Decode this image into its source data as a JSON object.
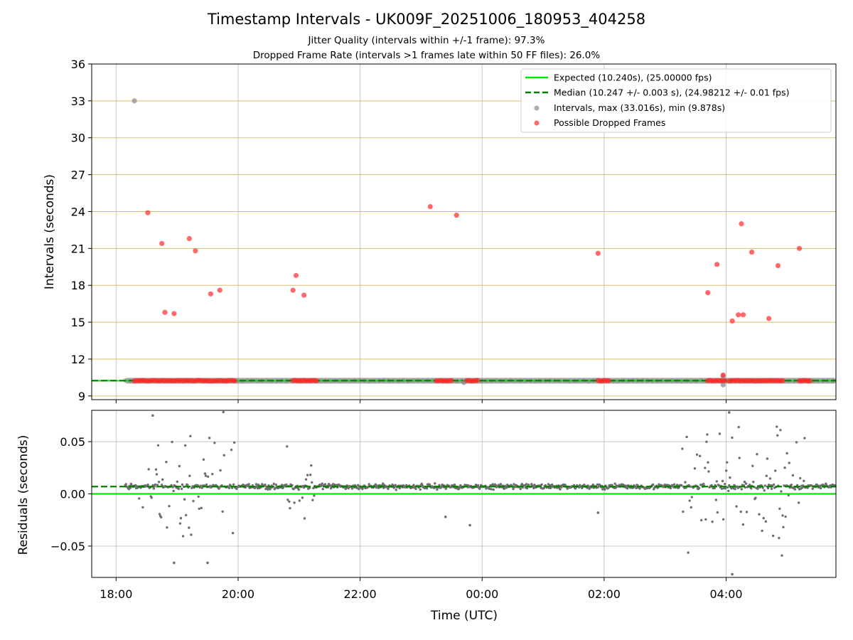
{
  "title": "Timestamp Intervals - UK009F_20251006_180953_404258",
  "subtitle_jitter": "Jitter Quality (intervals within +/-1 frame): 97.3%",
  "subtitle_dropped": "Dropped Frame Rate (intervals >1 frames late within 50 FF files): 26.0%",
  "colors": {
    "expected": "#00e600",
    "median": "#008000",
    "intervals": "#8c8c8c",
    "dropped": "#ff2a2a",
    "hgrid_top": "#d8bf6e",
    "vgrid": "#c8c8c8",
    "residual_points": "#6e6e6e"
  },
  "chart_data": [
    {
      "type": "scatter",
      "panel": "intervals",
      "ylabel": "Intervals (seconds)",
      "xlabel": "",
      "xlim_hours": [
        17.6,
        29.8
      ],
      "ylim": [
        8.7,
        36
      ],
      "yticks": [
        9,
        12,
        15,
        18,
        21,
        24,
        27,
        30,
        33,
        36
      ],
      "xticks_hours": [
        18,
        20,
        22,
        24,
        26,
        28
      ],
      "xticklabels": [
        "18:00",
        "20:00",
        "22:00",
        "00:00",
        "02:00",
        "04:00"
      ],
      "expected_interval": 10.24,
      "median_interval": 10.247,
      "legend": {
        "placement": "top-right",
        "expected": "Expected (10.240s), (25.00000 fps)",
        "median": "Median (10.247 +/- 0.003 s), (24.98212 +/- 0.01 fps)",
        "intervals": "Intervals, max (33.016s), min (9.878s)",
        "dropped": "Possible Dropped Frames"
      },
      "baseline_band": {
        "from_hours": 18.15,
        "to_hours": 29.8,
        "value": 10.24
      },
      "gray_outliers": [
        {
          "x": 18.3,
          "y": 33.0
        },
        {
          "x": 23.7,
          "y": 10.1
        },
        {
          "x": 27.95,
          "y": 10.6
        },
        {
          "x": 27.95,
          "y": 9.9
        }
      ],
      "dropped_clusters": [
        {
          "from_hours": 18.3,
          "to_hours": 19.95,
          "y": 10.24
        },
        {
          "from_hours": 20.9,
          "to_hours": 21.3,
          "y": 10.24
        },
        {
          "from_hours": 23.25,
          "to_hours": 23.5,
          "y": 10.24
        },
        {
          "from_hours": 23.75,
          "to_hours": 23.95,
          "y": 10.24
        },
        {
          "from_hours": 25.9,
          "to_hours": 26.1,
          "y": 10.24
        },
        {
          "from_hours": 27.7,
          "to_hours": 28.0,
          "y": 10.24
        },
        {
          "from_hours": 28.05,
          "to_hours": 28.95,
          "y": 10.24
        },
        {
          "from_hours": 29.2,
          "to_hours": 29.4,
          "y": 10.24
        }
      ],
      "dropped_points": [
        {
          "x": 18.52,
          "y": 23.9
        },
        {
          "x": 18.75,
          "y": 21.4
        },
        {
          "x": 18.8,
          "y": 15.8
        },
        {
          "x": 18.95,
          "y": 15.7
        },
        {
          "x": 19.2,
          "y": 21.8
        },
        {
          "x": 19.3,
          "y": 20.8
        },
        {
          "x": 19.55,
          "y": 17.3
        },
        {
          "x": 19.7,
          "y": 17.6
        },
        {
          "x": 20.9,
          "y": 17.6
        },
        {
          "x": 20.95,
          "y": 18.8
        },
        {
          "x": 21.08,
          "y": 17.2
        },
        {
          "x": 23.15,
          "y": 24.4
        },
        {
          "x": 23.58,
          "y": 23.7
        },
        {
          "x": 25.9,
          "y": 20.6
        },
        {
          "x": 27.7,
          "y": 17.4
        },
        {
          "x": 27.85,
          "y": 19.7
        },
        {
          "x": 28.1,
          "y": 15.1
        },
        {
          "x": 28.2,
          "y": 15.6
        },
        {
          "x": 28.28,
          "y": 15.6
        },
        {
          "x": 28.25,
          "y": 23.0
        },
        {
          "x": 28.42,
          "y": 20.7
        },
        {
          "x": 28.7,
          "y": 15.3
        },
        {
          "x": 28.85,
          "y": 19.6
        },
        {
          "x": 29.2,
          "y": 21.0
        },
        {
          "x": 27.95,
          "y": 10.7
        }
      ]
    },
    {
      "type": "scatter",
      "panel": "residuals",
      "ylabel": "Residuals (seconds)",
      "xlabel": "Time (UTC)",
      "xlim_hours": [
        17.6,
        29.8
      ],
      "ylim": [
        -0.08,
        0.08
      ],
      "yticks": [
        -0.05,
        0.0,
        0.05
      ],
      "yticklabels": [
        "−0.05",
        "0.00",
        "0.05"
      ],
      "xticks_hours": [
        18,
        20,
        22,
        24,
        26,
        28
      ],
      "xticklabels": [
        "18:00",
        "20:00",
        "22:00",
        "00:00",
        "02:00",
        "04:00"
      ],
      "expected_residual": 0.0,
      "median_residual": 0.007,
      "residual_band": {
        "from_hours": 18.15,
        "to_hours": 29.8,
        "center": 0.007,
        "spread": 0.004
      },
      "noisy_regions": [
        {
          "from_hours": 18.35,
          "to_hours": 19.95,
          "spread": 0.06
        },
        {
          "from_hours": 20.8,
          "to_hours": 21.3,
          "spread": 0.045
        },
        {
          "from_hours": 27.2,
          "to_hours": 29.3,
          "spread": 0.07
        }
      ],
      "isolated_points": [
        {
          "x": 23.4,
          "y": -0.022
        },
        {
          "x": 23.8,
          "y": -0.03
        },
        {
          "x": 25.9,
          "y": -0.018
        },
        {
          "x": 19.5,
          "y": -0.066
        },
        {
          "x": 18.95,
          "y": -0.066
        },
        {
          "x": 18.6,
          "y": 0.075
        },
        {
          "x": 28.05,
          "y": 0.078
        },
        {
          "x": 28.1,
          "y": -0.077
        }
      ]
    }
  ]
}
